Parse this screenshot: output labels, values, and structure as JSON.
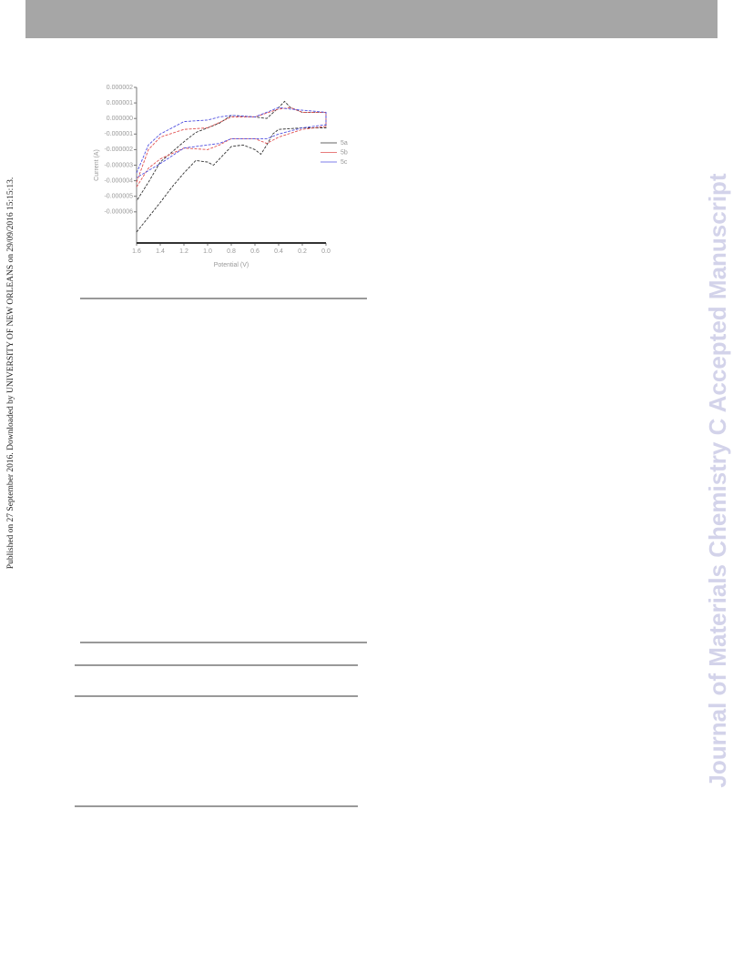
{
  "sidebar": "Published on 27 September 2016. Downloaded by UNIVERSITY OF NEW ORLEANS on 29/09/2016 15:15:13.",
  "watermark": "Journal of Materials Chemistry C Accepted Manuscript",
  "chart_data": {
    "type": "line",
    "xlabel": "Potential (V)",
    "ylabel": "Current (A)",
    "xlim": [
      1.6,
      0.0
    ],
    "ylim": [
      -8e-06,
      2e-06
    ],
    "xticks": [
      {
        "value": 1.6,
        "label": "1.6"
      },
      {
        "value": 1.4,
        "label": "1.4"
      },
      {
        "value": 1.2,
        "label": "1.2"
      },
      {
        "value": 1.0,
        "label": "1.0"
      },
      {
        "value": 0.8,
        "label": "0.8"
      },
      {
        "value": 0.6,
        "label": "0.6"
      },
      {
        "value": 0.4,
        "label": "0.4"
      },
      {
        "value": 0.2,
        "label": "0.2"
      },
      {
        "value": 0.0,
        "label": "0.0"
      }
    ],
    "yticks": [
      {
        "value": 2e-06,
        "label": "0.000002"
      },
      {
        "value": 1e-06,
        "label": "0.000001"
      },
      {
        "value": 0,
        "label": "0.000000"
      },
      {
        "value": -1e-06,
        "label": "-0.000001"
      },
      {
        "value": -2e-06,
        "label": "-0.000002"
      },
      {
        "value": -3e-06,
        "label": "-0.000003"
      },
      {
        "value": -4e-06,
        "label": "-0.000004"
      },
      {
        "value": -5e-06,
        "label": "-0.000005"
      },
      {
        "value": -6e-06,
        "label": "-0.000006"
      }
    ],
    "series": [
      {
        "name": "5a",
        "color": "#333333",
        "x": [
          1.6,
          1.4,
          1.3,
          1.2,
          1.1,
          1.0,
          0.95,
          0.9,
          0.8,
          0.7,
          0.6,
          0.55,
          0.5,
          0.45,
          0.4,
          0.2,
          0.0,
          0.0,
          0.2,
          0.3,
          0.35,
          0.4,
          0.5,
          0.6,
          0.8,
          0.9,
          1.0,
          1.1,
          1.2,
          1.4,
          1.5,
          1.6
        ],
        "values": [
          -7.3e-06,
          -5.4e-06,
          -4.4e-06,
          -3.5e-06,
          -2.7e-06,
          -2.8e-06,
          -3e-06,
          -2.6e-06,
          -1.8e-06,
          -1.7e-06,
          -2e-06,
          -2.3e-06,
          -1.7e-06,
          -1e-06,
          -7e-07,
          -6e-07,
          -6e-07,
          4e-07,
          4e-07,
          7e-07,
          1.1e-06,
          7e-07,
          0,
          1e-07,
          2e-07,
          -3e-07,
          -6e-07,
          -9e-07,
          -1.5e-06,
          -2.8e-06,
          -4.1e-06,
          -5.3e-06
        ]
      },
      {
        "name": "5b",
        "color": "#e05050",
        "x": [
          1.6,
          1.5,
          1.4,
          1.2,
          1.0,
          0.8,
          0.6,
          0.4,
          0.3,
          0.2,
          0.0,
          0.0,
          0.2,
          0.4,
          0.5,
          0.6,
          0.8,
          0.9,
          1.0,
          1.2,
          1.4,
          1.5,
          1.6
        ],
        "values": [
          -4.1e-06,
          -2e-06,
          -1.2e-06,
          -7e-07,
          -6e-07,
          1e-07,
          1e-07,
          6e-07,
          7e-07,
          4e-07,
          4e-07,
          -5e-07,
          -7e-07,
          -1.2e-06,
          -1.6e-06,
          -1.3e-06,
          -1.3e-06,
          -1.7e-06,
          -2e-06,
          -1.9e-06,
          -2.6e-06,
          -3.2e-06,
          -4.4e-06
        ]
      },
      {
        "name": "5c",
        "color": "#5050e0",
        "x": [
          1.6,
          1.5,
          1.4,
          1.3,
          1.2,
          1.0,
          0.9,
          0.8,
          0.6,
          0.4,
          0.3,
          0.0,
          0.0,
          0.2,
          0.4,
          0.5,
          0.6,
          0.8,
          0.9,
          1.0,
          1.2,
          1.4,
          1.6
        ],
        "values": [
          -3.5e-06,
          -1.7e-06,
          -1e-06,
          -6e-07,
          -2e-07,
          -1e-07,
          1e-07,
          2e-07,
          1e-07,
          7e-07,
          6e-07,
          4e-07,
          -4e-07,
          -6e-07,
          -1e-06,
          -1.3e-06,
          -1.3e-06,
          -1.3e-06,
          -1.6e-06,
          -1.7e-06,
          -1.9e-06,
          -2.9e-06,
          -3.8e-06
        ]
      }
    ]
  }
}
